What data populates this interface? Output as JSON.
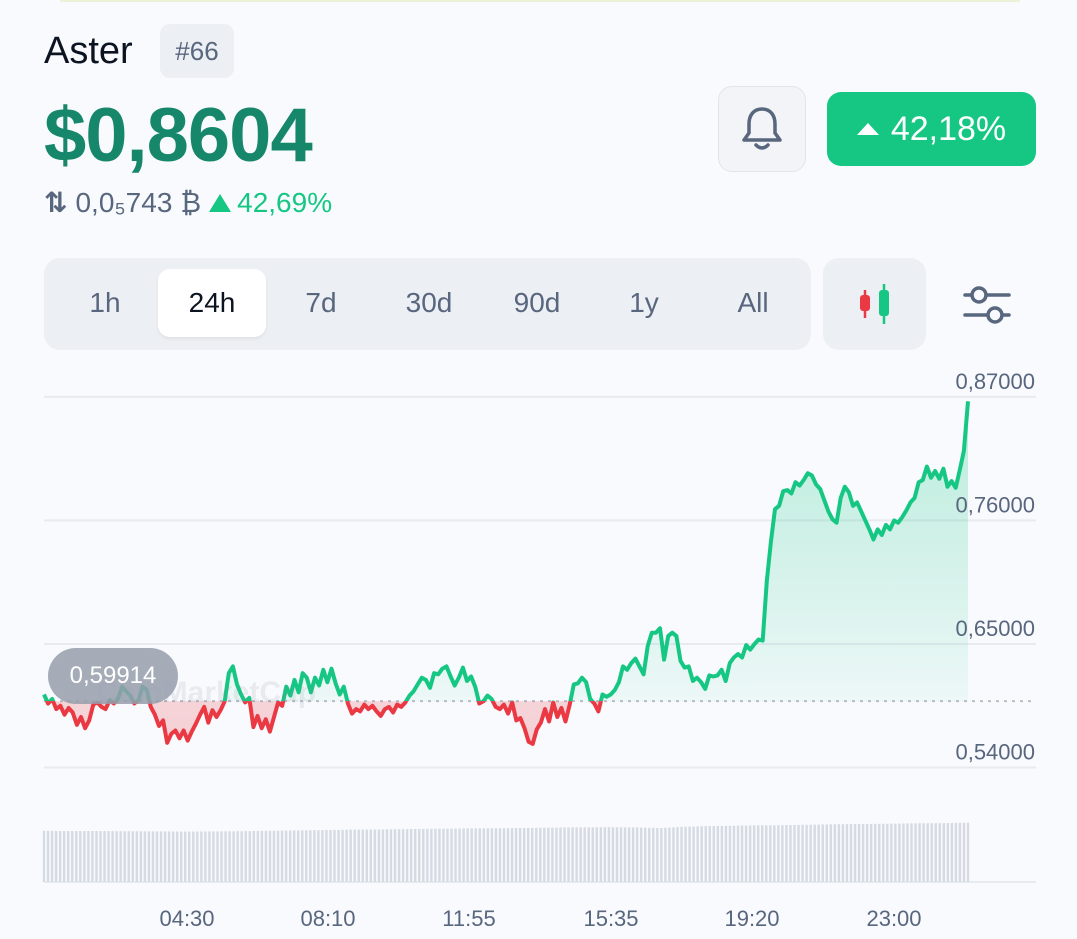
{
  "asset": {
    "name": "Aster",
    "rank": "#66",
    "price": "$0,8604",
    "btc_price": "0,0₅743",
    "btc_symbol": "₿",
    "btc_change": "42,69%",
    "change_24h": "42,18%"
  },
  "timeframes": [
    {
      "label": "1h",
      "active": false
    },
    {
      "label": "24h",
      "active": true
    },
    {
      "label": "7d",
      "active": false
    },
    {
      "label": "30d",
      "active": false
    },
    {
      "label": "90d",
      "active": false
    },
    {
      "label": "1y",
      "active": false
    },
    {
      "label": "All",
      "active": false
    }
  ],
  "icons": {
    "alert": "bell-icon",
    "chart_type": "candlestick-icon",
    "settings": "sliders-icon",
    "swap": "swap-arrows-icon"
  },
  "colors": {
    "price": "#16876a",
    "up": "#16c784",
    "down": "#ea3943",
    "text_muted": "#58667e"
  },
  "watermark": "CoinMarketCap",
  "chart_data": {
    "type": "line",
    "reference_value": 0.59914,
    "reference_label": "0,59914",
    "y_ticks": [
      "0,87000",
      "0,76000",
      "0,65000",
      "0,54000"
    ],
    "y_tick_values": [
      0.87,
      0.76,
      0.65,
      0.54
    ],
    "ylim": [
      0.52,
      0.885
    ],
    "x_tick_labels": [
      "04:30",
      "08:10",
      "11:55",
      "15:35",
      "19:20",
      "23:00"
    ],
    "series": [
      {
        "values": [
          0.605,
          0.597,
          0.601,
          0.592,
          0.595,
          0.587,
          0.593,
          0.589,
          0.578,
          0.585,
          0.575,
          0.582,
          0.596,
          0.598,
          0.594,
          0.592,
          0.6,
          0.597,
          0.601,
          0.612,
          0.608,
          0.604,
          0.597,
          0.6,
          0.612,
          0.609,
          0.594,
          0.587,
          0.577,
          0.582,
          0.562,
          0.57,
          0.573,
          0.566,
          0.573,
          0.564,
          0.572,
          0.579,
          0.587,
          0.594,
          0.58,
          0.591,
          0.585,
          0.591,
          0.599,
          0.624,
          0.63,
          0.614,
          0.605,
          0.598,
          0.602,
          0.576,
          0.586,
          0.575,
          0.583,
          0.572,
          0.585,
          0.598,
          0.595,
          0.612,
          0.604,
          0.618,
          0.607,
          0.624,
          0.62,
          0.607,
          0.62,
          0.613,
          0.627,
          0.616,
          0.628,
          0.615,
          0.605,
          0.612,
          0.597,
          0.588,
          0.592,
          0.59,
          0.596,
          0.592,
          0.595,
          0.59,
          0.586,
          0.592,
          0.594,
          0.589,
          0.596,
          0.594,
          0.598,
          0.604,
          0.608,
          0.614,
          0.62,
          0.618,
          0.611,
          0.624,
          0.623,
          0.628,
          0.63,
          0.621,
          0.613,
          0.62,
          0.629,
          0.617,
          0.621,
          0.612,
          0.597,
          0.599,
          0.604,
          0.601,
          0.594,
          0.592,
          0.596,
          0.588,
          0.598,
          0.582,
          0.584,
          0.575,
          0.563,
          0.561,
          0.574,
          0.58,
          0.592,
          0.581,
          0.598,
          0.585,
          0.593,
          0.581,
          0.596,
          0.614,
          0.615,
          0.62,
          0.616,
          0.601,
          0.597,
          0.59,
          0.605,
          0.603,
          0.605,
          0.609,
          0.616,
          0.63,
          0.627,
          0.633,
          0.637,
          0.63,
          0.623,
          0.648,
          0.66,
          0.66,
          0.664,
          0.636,
          0.657,
          0.66,
          0.657,
          0.635,
          0.629,
          0.63,
          0.617,
          0.62,
          0.616,
          0.61,
          0.622,
          0.621,
          0.622,
          0.627,
          0.617,
          0.633,
          0.638,
          0.641,
          0.638,
          0.649,
          0.645,
          0.65,
          0.654,
          0.653,
          0.706,
          0.741,
          0.77,
          0.773,
          0.786,
          0.787,
          0.784,
          0.794,
          0.791,
          0.796,
          0.802,
          0.8,
          0.792,
          0.788,
          0.778,
          0.768,
          0.761,
          0.758,
          0.78,
          0.79,
          0.785,
          0.773,
          0.776,
          0.768,
          0.76,
          0.752,
          0.743,
          0.752,
          0.747,
          0.756,
          0.752,
          0.76,
          0.758,
          0.763,
          0.769,
          0.776,
          0.78,
          0.794,
          0.796,
          0.808,
          0.798,
          0.804,
          0.797,
          0.806,
          0.79,
          0.795,
          0.789,
          0.805,
          0.822,
          0.866
        ]
      }
    ],
    "volume": [
      0.45,
      0.43,
      0.44,
      0.43,
      0.42,
      0.41,
      0.4,
      0.41,
      0.42,
      0.44,
      0.46,
      0.48,
      0.5,
      0.52,
      0.53,
      0.55,
      0.57,
      0.58,
      0.6,
      0.61,
      0.62,
      0.64,
      0.66,
      0.67,
      0.68,
      0.66,
      0.62,
      0.7,
      0.74,
      0.76,
      0.79,
      0.8,
      0.82,
      0.85,
      0.87,
      0.88,
      0.9,
      0.92,
      0.93,
      0.96
    ]
  }
}
